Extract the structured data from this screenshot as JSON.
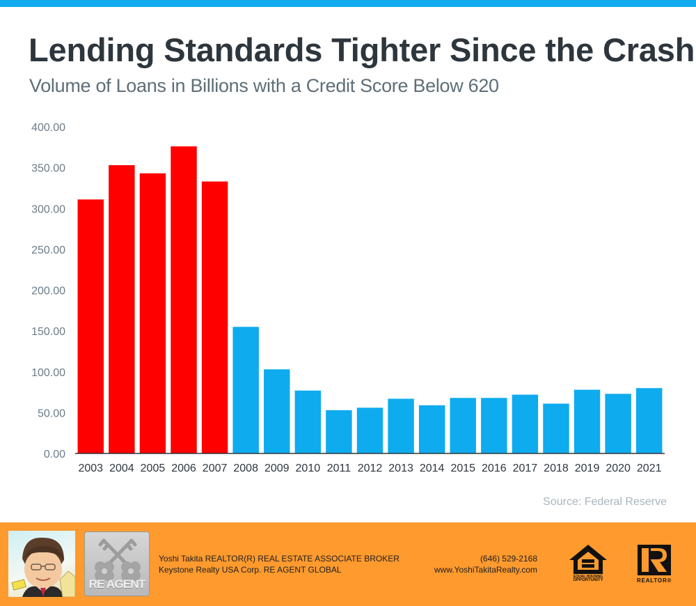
{
  "header": {
    "title": "Lending Standards Tighter Since the Crash",
    "subtitle": "Volume of Loans in Billions with a Credit Score Below 620"
  },
  "colors": {
    "accent_blue": "#12ABEF",
    "pre_crash_red": "#FF0000",
    "post_crash_blue": "#0EABEE",
    "footer_orange": "#FE9A2E",
    "title_text": "#2E363D"
  },
  "chart_data": {
    "type": "bar",
    "title": "Lending Standards Tighter Since the Crash",
    "subtitle": "Volume of Loans in Billions with a Credit Score Below 620",
    "xlabel": "",
    "ylabel": "",
    "categories": [
      "2003",
      "2004",
      "2005",
      "2006",
      "2007",
      "2008",
      "2009",
      "2010",
      "2011",
      "2012",
      "2013",
      "2014",
      "2015",
      "2016",
      "2017",
      "2018",
      "2019",
      "2020",
      "2021"
    ],
    "values": [
      311,
      353,
      343,
      376,
      333,
      155,
      103,
      77,
      53,
      56,
      67,
      59,
      68,
      68,
      72,
      61,
      78,
      73,
      80
    ],
    "bar_colors": [
      "#FF0000",
      "#FF0000",
      "#FF0000",
      "#FF0000",
      "#FF0000",
      "#0EABEE",
      "#0EABEE",
      "#0EABEE",
      "#0EABEE",
      "#0EABEE",
      "#0EABEE",
      "#0EABEE",
      "#0EABEE",
      "#0EABEE",
      "#0EABEE",
      "#0EABEE",
      "#0EABEE",
      "#0EABEE",
      "#0EABEE"
    ],
    "ylim": [
      0,
      400
    ],
    "yticks": [
      0,
      50,
      100,
      150,
      200,
      250,
      300,
      350,
      400
    ],
    "ytick_labels": [
      "0.00",
      "50.00",
      "100.00",
      "150.00",
      "200.00",
      "250.00",
      "300.00",
      "350.00",
      "400.00"
    ],
    "grid": false,
    "legend": null,
    "source": "Source: Federal Reserve"
  },
  "footer": {
    "photo_alt": "agent caricature",
    "logo_label": "RE AGENT",
    "agent_line1": "Yoshi Takita REALTOR(R) REAL ESTATE ASSOCIATE BROKER",
    "agent_line2": "Keystone Realty USA Corp.  RE AGENT GLOBAL",
    "phone": "(646) 529-2168",
    "website": "www.YoshiTakitaRealty.com",
    "eho_line1": "EQUAL HOUSING",
    "eho_line2": "OPPORTUNITY",
    "realtor_label": "REALTOR®"
  }
}
